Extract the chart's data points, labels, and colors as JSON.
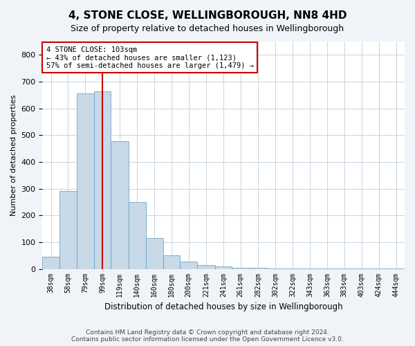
{
  "title": "4, STONE CLOSE, WELLINGBOROUGH, NN8 4HD",
  "subtitle": "Size of property relative to detached houses in Wellingborough",
  "xlabel": "Distribution of detached houses by size in Wellingborough",
  "ylabel": "Number of detached properties",
  "bar_values": [
    45,
    290,
    655,
    665,
    478,
    250,
    115,
    50,
    28,
    15,
    10,
    3,
    3,
    2,
    2,
    1,
    1,
    1,
    1,
    1,
    1
  ],
  "bar_color": "#c8d9e8",
  "bar_edge_color": "#5a9abf",
  "bar_edge_width": 0.5,
  "tick_labels": [
    "38sqm",
    "58sqm",
    "79sqm",
    "99sqm",
    "119sqm",
    "140sqm",
    "160sqm",
    "180sqm",
    "200sqm",
    "221sqm",
    "241sqm",
    "261sqm",
    "282sqm",
    "302sqm",
    "322sqm",
    "343sqm",
    "363sqm",
    "383sqm",
    "403sqm",
    "424sqm",
    "444sqm"
  ],
  "ylim": [
    0,
    850
  ],
  "yticks": [
    0,
    100,
    200,
    300,
    400,
    500,
    600,
    700,
    800
  ],
  "red_line_x": 4,
  "bin_edges": [
    28.5,
    48.5,
    68.5,
    89,
    109,
    129.5,
    150,
    170,
    190,
    210.5,
    231,
    251,
    271.5,
    292,
    312,
    332.5,
    353,
    373,
    393,
    413.5,
    434,
    454
  ],
  "annotation_text": "4 STONE CLOSE: 103sqm\n← 43% of detached houses are smaller (1,123)\n57% of semi-detached houses are larger (1,479) →",
  "annotation_box_color": "#ffffff",
  "annotation_box_edge": "#cc0000",
  "footer_line1": "Contains HM Land Registry data © Crown copyright and database right 2024.",
  "footer_line2": "Contains public sector information licensed under the Open Government Licence v3.0.",
  "bg_color": "#f0f4f8",
  "plot_bg_color": "#ffffff",
  "grid_color": "#c8d4e0"
}
